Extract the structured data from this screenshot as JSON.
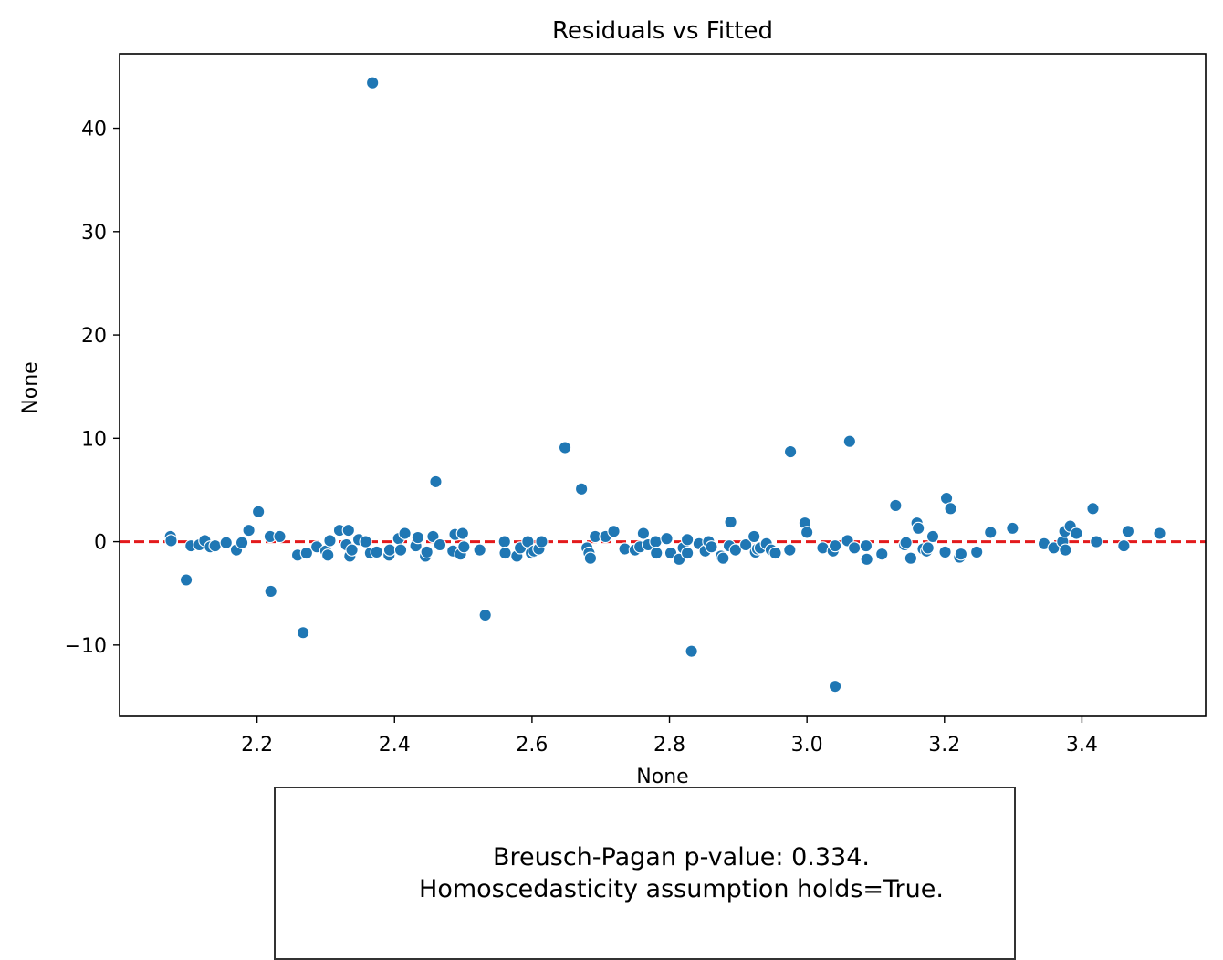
{
  "chart_data": {
    "type": "scatter",
    "title": "Residuals vs Fitted",
    "xlabel": "None",
    "ylabel": "None",
    "xlim": [
      2.0,
      3.58
    ],
    "ylim": [
      -16.9,
      47.2
    ],
    "xticks": [
      "2.2",
      "2.4",
      "2.6",
      "2.8",
      "3.0",
      "3.2",
      "3.4"
    ],
    "yticks": [
      "−10",
      "0",
      "10",
      "20",
      "30",
      "40"
    ],
    "xtick_values": [
      2.2,
      2.4,
      2.6,
      2.8,
      3.0,
      3.2,
      3.4
    ],
    "ytick_values": [
      -10,
      0,
      10,
      20,
      30,
      40
    ],
    "reference_line": {
      "y": 0,
      "style": "dashed",
      "color": "#e31a1c"
    },
    "point_color": "#1f77b4",
    "grid": false,
    "points": [
      [
        2.074,
        0.5
      ],
      [
        2.075,
        0.1
      ],
      [
        2.097,
        -3.7
      ],
      [
        2.104,
        -0.4
      ],
      [
        2.116,
        -0.3
      ],
      [
        2.124,
        0.1
      ],
      [
        2.132,
        -0.5
      ],
      [
        2.139,
        -0.4
      ],
      [
        2.155,
        -0.1
      ],
      [
        2.17,
        -0.8
      ],
      [
        2.178,
        -0.1
      ],
      [
        2.188,
        1.1
      ],
      [
        2.202,
        2.9
      ],
      [
        2.219,
        0.5
      ],
      [
        2.22,
        -4.8
      ],
      [
        2.233,
        0.5
      ],
      [
        2.259,
        -1.3
      ],
      [
        2.267,
        -8.8
      ],
      [
        2.272,
        -1.1
      ],
      [
        2.287,
        -0.5
      ],
      [
        2.3,
        -0.9
      ],
      [
        2.303,
        -1.3
      ],
      [
        2.306,
        0.1
      ],
      [
        2.32,
        1.1
      ],
      [
        2.33,
        -0.3
      ],
      [
        2.333,
        1.1
      ],
      [
        2.335,
        -1.4
      ],
      [
        2.338,
        -0.8
      ],
      [
        2.348,
        0.2
      ],
      [
        2.358,
        0.0
      ],
      [
        2.365,
        -1.1
      ],
      [
        2.368,
        44.4
      ],
      [
        2.374,
        -1.0
      ],
      [
        2.392,
        -1.3
      ],
      [
        2.393,
        -0.8
      ],
      [
        2.406,
        0.3
      ],
      [
        2.409,
        -0.8
      ],
      [
        2.415,
        0.8
      ],
      [
        2.431,
        -0.4
      ],
      [
        2.434,
        0.4
      ],
      [
        2.445,
        -1.4
      ],
      [
        2.447,
        -1.0
      ],
      [
        2.456,
        0.5
      ],
      [
        2.46,
        5.8
      ],
      [
        2.466,
        -0.3
      ],
      [
        2.485,
        -0.9
      ],
      [
        2.488,
        0.7
      ],
      [
        2.496,
        -1.2
      ],
      [
        2.499,
        0.8
      ],
      [
        2.501,
        -0.5
      ],
      [
        2.524,
        -0.8
      ],
      [
        2.532,
        -7.1
      ],
      [
        2.56,
        0.0
      ],
      [
        2.561,
        -1.1
      ],
      [
        2.578,
        -1.4
      ],
      [
        2.583,
        -0.6
      ],
      [
        2.594,
        0.0
      ],
      [
        2.599,
        -1.1
      ],
      [
        2.603,
        -0.9
      ],
      [
        2.61,
        -0.7
      ],
      [
        2.614,
        0.0
      ],
      [
        2.648,
        9.1
      ],
      [
        2.672,
        5.1
      ],
      [
        2.68,
        -0.6
      ],
      [
        2.683,
        -1.1
      ],
      [
        2.685,
        -1.6
      ],
      [
        2.692,
        0.5
      ],
      [
        2.707,
        0.5
      ],
      [
        2.719,
        1.0
      ],
      [
        2.735,
        -0.7
      ],
      [
        2.75,
        -0.8
      ],
      [
        2.757,
        -0.5
      ],
      [
        2.762,
        0.8
      ],
      [
        2.769,
        -0.3
      ],
      [
        2.78,
        0.0
      ],
      [
        2.781,
        -1.1
      ],
      [
        2.796,
        0.3
      ],
      [
        2.802,
        -1.1
      ],
      [
        2.814,
        -1.7
      ],
      [
        2.82,
        -0.6
      ],
      [
        2.826,
        0.2
      ],
      [
        2.826,
        -1.1
      ],
      [
        2.832,
        -10.6
      ],
      [
        2.843,
        -0.2
      ],
      [
        2.852,
        -0.9
      ],
      [
        2.857,
        0.0
      ],
      [
        2.861,
        -0.5
      ],
      [
        2.875,
        -1.4
      ],
      [
        2.878,
        -1.6
      ],
      [
        2.887,
        -0.4
      ],
      [
        2.889,
        1.9
      ],
      [
        2.896,
        -0.8
      ],
      [
        2.911,
        -0.3
      ],
      [
        2.923,
        0.5
      ],
      [
        2.925,
        -1.0
      ],
      [
        2.928,
        -0.7
      ],
      [
        2.932,
        -0.6
      ],
      [
        2.941,
        -0.2
      ],
      [
        2.948,
        -0.8
      ],
      [
        2.954,
        -1.1
      ],
      [
        2.975,
        -0.8
      ],
      [
        2.976,
        8.7
      ],
      [
        2.997,
        1.8
      ],
      [
        3.0,
        0.9
      ],
      [
        3.023,
        -0.6
      ],
      [
        3.038,
        -0.9
      ],
      [
        3.041,
        -14.0
      ],
      [
        3.041,
        -0.4
      ],
      [
        3.059,
        0.1
      ],
      [
        3.062,
        9.7
      ],
      [
        3.069,
        -0.6
      ],
      [
        3.086,
        -0.4
      ],
      [
        3.087,
        -1.7
      ],
      [
        3.109,
        -1.2
      ],
      [
        3.129,
        3.5
      ],
      [
        3.142,
        -0.3
      ],
      [
        3.144,
        -0.1
      ],
      [
        3.151,
        -1.6
      ],
      [
        3.16,
        1.8
      ],
      [
        3.162,
        1.3
      ],
      [
        3.169,
        -0.7
      ],
      [
        3.174,
        -0.9
      ],
      [
        3.176,
        -0.6
      ],
      [
        3.183,
        0.5
      ],
      [
        3.201,
        -1.0
      ],
      [
        3.203,
        4.2
      ],
      [
        3.209,
        3.2
      ],
      [
        3.222,
        -1.5
      ],
      [
        3.224,
        -1.2
      ],
      [
        3.247,
        -1.0
      ],
      [
        3.267,
        0.9
      ],
      [
        3.299,
        1.3
      ],
      [
        3.345,
        -0.2
      ],
      [
        3.359,
        -0.6
      ],
      [
        3.372,
        0.0
      ],
      [
        3.375,
        1.0
      ],
      [
        3.376,
        -0.8
      ],
      [
        3.383,
        1.5
      ],
      [
        3.392,
        0.8
      ],
      [
        3.416,
        3.2
      ],
      [
        3.421,
        0.0
      ],
      [
        3.461,
        -0.4
      ],
      [
        3.467,
        1.0
      ],
      [
        3.513,
        0.8
      ]
    ]
  },
  "annotation": {
    "line1": "Breusch-Pagan p-value: 0.334.",
    "line2": "Homoscedasticity assumption holds=True."
  }
}
